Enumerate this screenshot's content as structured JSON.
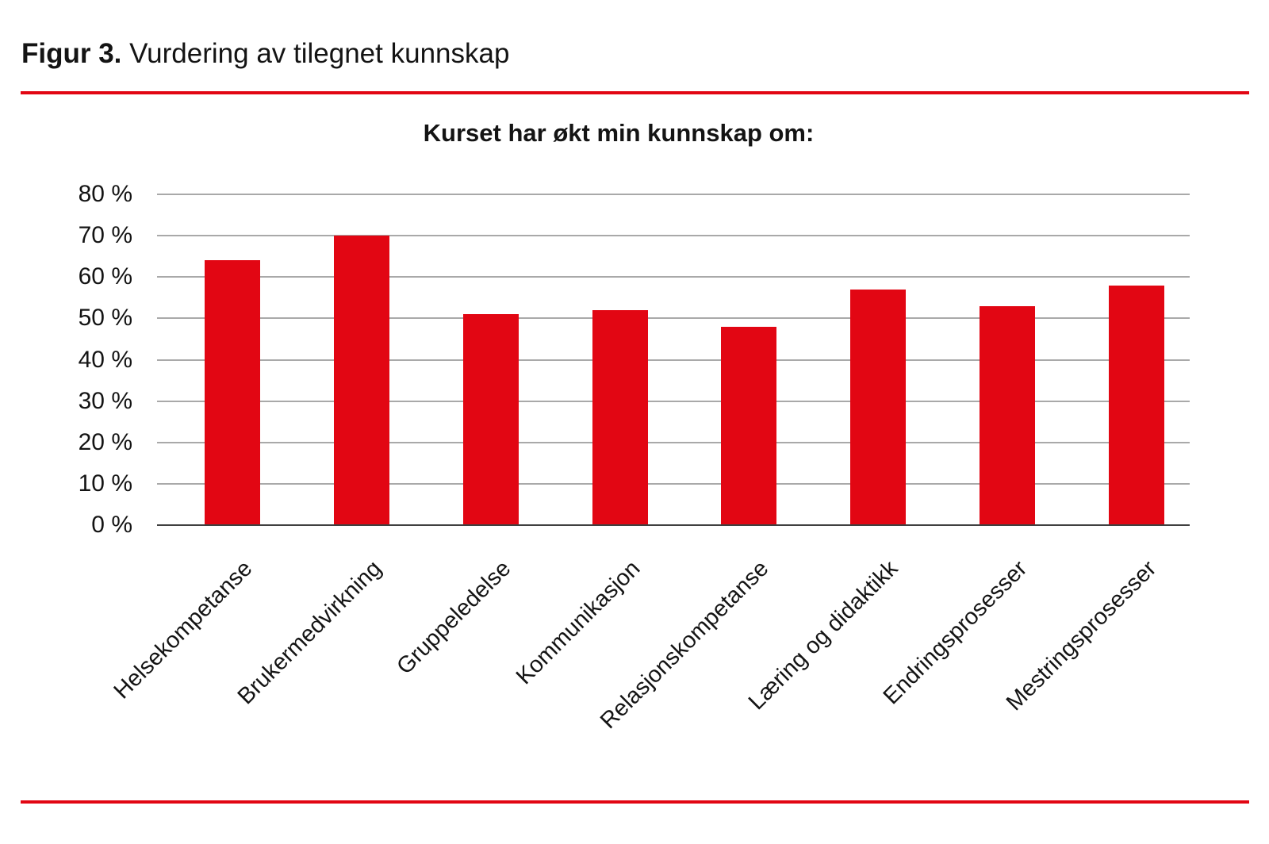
{
  "figure": {
    "label": "Figur 3.",
    "title": "Vurdering av tilegnet kunnskap"
  },
  "chart_data": {
    "type": "bar",
    "title": "Kurset har økt min kunnskap om:",
    "categories": [
      "Helsekompetanse",
      "Brukermedvirkning",
      "Gruppeledelse",
      "Kommunikasjon",
      "Relasjonskompetanse",
      "Læring og didaktikk",
      "Endringsprosesser",
      "Mestringsprosesser"
    ],
    "values": [
      64,
      70,
      51,
      52,
      48,
      57,
      53,
      58
    ],
    "unit": "%",
    "xlabel": "",
    "ylabel": "",
    "ylim": [
      0,
      80
    ],
    "ytick_step": 10,
    "ytick_labels": [
      "80 %",
      "70 %",
      "60 %",
      "50 %",
      "40 %",
      "30 %",
      "20 %",
      "10 %",
      "0 %"
    ],
    "ytick_values": [
      80,
      70,
      60,
      50,
      40,
      30,
      20,
      10,
      0
    ],
    "grid": true,
    "legend": "none",
    "bar_color": "#e20613"
  },
  "colors": {
    "accent_red": "#e20613",
    "gridline": "#a9a9a9",
    "axis_line": "#404040",
    "text": "#141414"
  }
}
